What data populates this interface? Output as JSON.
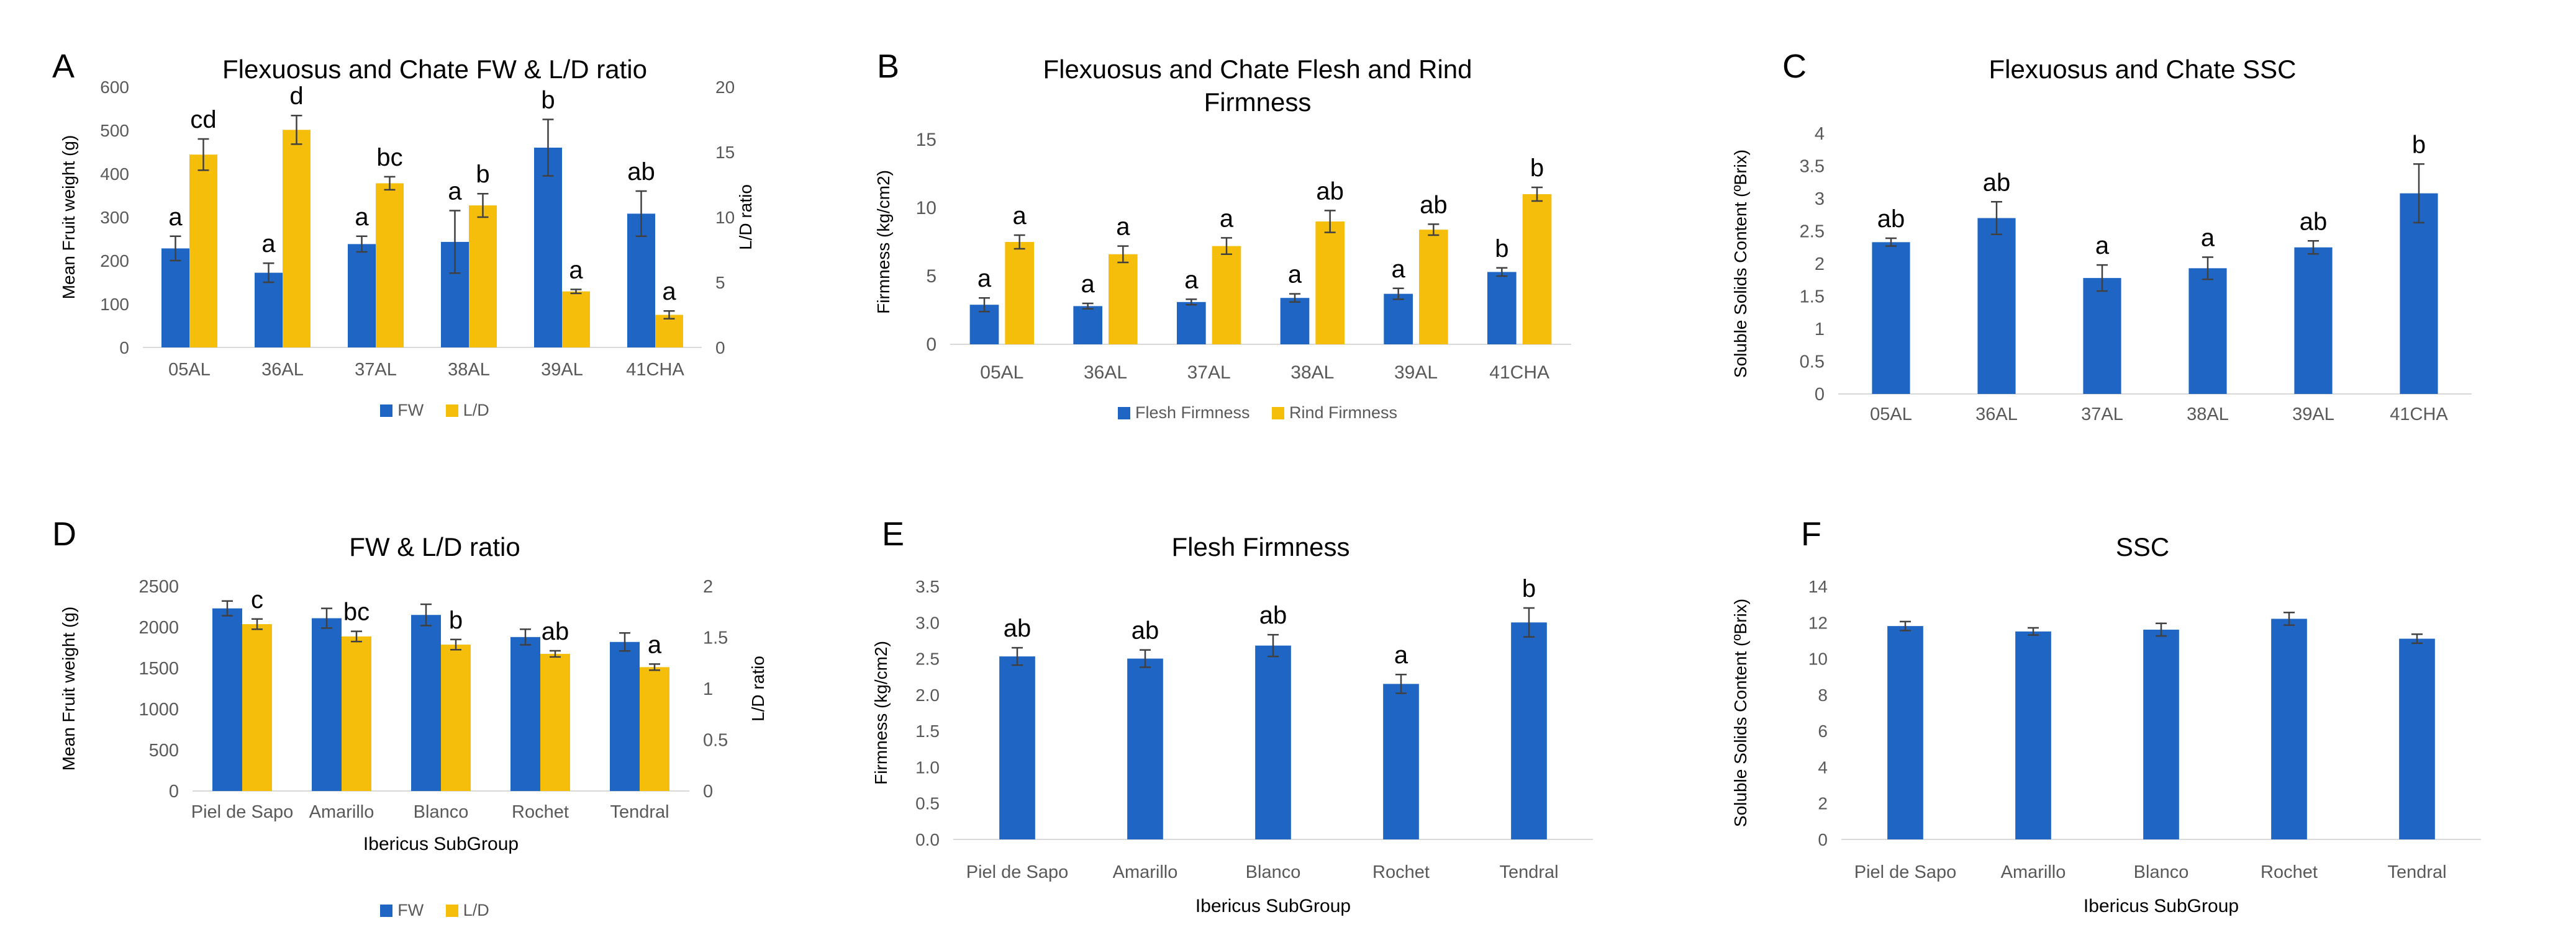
{
  "colors": {
    "series1": "#1f66c4",
    "series2": "#f5be0b",
    "axis_text": "#595959",
    "grid": "#d9d9d9"
  },
  "chart_data": [
    {
      "id": "A",
      "panel_label": "A",
      "type": "bar",
      "title": "Flexuosus and Chate FW & L/D ratio",
      "categories": [
        "05AL",
        "36AL",
        "37AL",
        "38AL",
        "39AL",
        "41CHA"
      ],
      "xlabel": "",
      "ylabel": "Mean Fruit weight (g)",
      "y2label": "L/D ratio",
      "ylim": [
        0,
        600
      ],
      "yticks": [
        0,
        100,
        200,
        300,
        400,
        500,
        600
      ],
      "y2lim": [
        0,
        20
      ],
      "y2ticks": [
        0,
        5,
        10,
        15,
        20
      ],
      "grid": false,
      "series": [
        {
          "name": "FW",
          "axis": "left",
          "color": "#1f66c4",
          "values": [
            228,
            172,
            238,
            243,
            460,
            308
          ],
          "errors": [
            28,
            22,
            18,
            72,
            65,
            52
          ],
          "letters": [
            "a",
            "a",
            "a",
            "a",
            "b",
            "ab"
          ]
        },
        {
          "name": "L/D",
          "axis": "right",
          "color": "#f5be0b",
          "values": [
            14.8,
            16.7,
            12.6,
            10.9,
            4.3,
            2.5
          ],
          "errors": [
            1.2,
            1.1,
            0.5,
            0.9,
            0.15,
            0.3
          ],
          "letters": [
            "cd",
            "d",
            "bc",
            "b",
            "a",
            "a"
          ]
        }
      ],
      "legend": [
        "FW",
        "L/D"
      ]
    },
    {
      "id": "B",
      "panel_label": "B",
      "type": "bar",
      "title": "Flexuosus and Chate Flesh and Rind Firmness",
      "categories": [
        "05AL",
        "36AL",
        "37AL",
        "38AL",
        "39AL",
        "41CHA"
      ],
      "xlabel": "",
      "ylabel": "Firmness (kg/cm2)",
      "ylim": [
        0,
        15
      ],
      "yticks": [
        0,
        5,
        10,
        15
      ],
      "grid": false,
      "series": [
        {
          "name": "Flesh Firmness",
          "axis": "left",
          "color": "#1f66c4",
          "values": [
            2.9,
            2.8,
            3.1,
            3.4,
            3.7,
            5.3
          ],
          "errors": [
            0.5,
            0.2,
            0.2,
            0.3,
            0.4,
            0.3
          ],
          "letters": [
            "a",
            "a",
            "a",
            "a",
            "a",
            "b"
          ]
        },
        {
          "name": "Rind Firmness",
          "axis": "left",
          "color": "#f5be0b",
          "values": [
            7.5,
            6.6,
            7.2,
            9.0,
            8.4,
            11.0
          ],
          "errors": [
            0.5,
            0.6,
            0.6,
            0.8,
            0.4,
            0.5
          ],
          "letters": [
            "a",
            "a",
            "a",
            "ab",
            "ab",
            "b"
          ]
        }
      ],
      "legend": [
        "Flesh Firmness",
        "Rind Firmness"
      ]
    },
    {
      "id": "C",
      "panel_label": "C",
      "type": "bar",
      "title": "Flexuosus and Chate SSC",
      "categories": [
        "05AL",
        "36AL",
        "37AL",
        "38AL",
        "39AL",
        "41CHA"
      ],
      "xlabel": "",
      "ylabel": "Soluble Solids Content (ºBrix)",
      "ylim": [
        0,
        4
      ],
      "yticks": [
        0,
        0.5,
        1,
        1.5,
        2,
        2.5,
        3,
        3.5,
        4
      ],
      "grid": false,
      "series": [
        {
          "name": "SSC",
          "axis": "left",
          "color": "#1f66c4",
          "values": [
            2.33,
            2.7,
            1.78,
            1.93,
            2.25,
            3.08
          ],
          "errors": [
            0.06,
            0.25,
            0.2,
            0.17,
            0.1,
            0.45
          ],
          "letters": [
            "ab",
            "ab",
            "a",
            "a",
            "ab",
            "b"
          ]
        }
      ],
      "legend": []
    },
    {
      "id": "D",
      "panel_label": "D",
      "type": "bar",
      "title": "FW & L/D ratio",
      "categories": [
        "Piel de Sapo",
        "Amarillo",
        "Blanco",
        "Rochet",
        "Tendral"
      ],
      "xlabel": "Ibericus SubGroup",
      "ylabel": "Mean Fruit weight (g)",
      "y2label": "L/D ratio",
      "ylim": [
        0,
        2500
      ],
      "yticks": [
        0,
        500,
        1000,
        1500,
        2000,
        2500
      ],
      "y2lim": [
        0,
        2
      ],
      "y2ticks": [
        0,
        0.5,
        1,
        1.5,
        2
      ],
      "grid": false,
      "series": [
        {
          "name": "FW",
          "axis": "left",
          "color": "#1f66c4",
          "values": [
            2230,
            2110,
            2150,
            1880,
            1820
          ],
          "errors": [
            90,
            120,
            130,
            95,
            110
          ],
          "letters": [
            "",
            "",
            "",
            "",
            ""
          ]
        },
        {
          "name": "L/D",
          "axis": "right",
          "color": "#f5be0b",
          "values": [
            1.63,
            1.51,
            1.43,
            1.34,
            1.21
          ],
          "errors": [
            0.05,
            0.05,
            0.05,
            0.03,
            0.03
          ],
          "letters": [
            "c",
            "bc",
            "b",
            "ab",
            "a"
          ]
        }
      ],
      "legend": [
        "FW",
        "L/D"
      ]
    },
    {
      "id": "E",
      "panel_label": "E",
      "type": "bar",
      "title": "Flesh Firmness",
      "categories": [
        "Piel de Sapo",
        "Amarillo",
        "Blanco",
        "Rochet",
        "Tendral"
      ],
      "xlabel": "Ibericus SubGroup",
      "ylabel": "Firmness (kg/cm2)",
      "ylim": [
        0,
        3.5
      ],
      "yticks": [
        "0.0",
        "0.5",
        "1.0",
        "1.5",
        "2.0",
        "2.5",
        "3.0",
        "3.5"
      ],
      "grid": false,
      "series": [
        {
          "name": "Flesh Firmness",
          "axis": "left",
          "color": "#1f66c4",
          "values": [
            2.53,
            2.5,
            2.68,
            2.15,
            3.0
          ],
          "errors": [
            0.12,
            0.12,
            0.15,
            0.13,
            0.2
          ],
          "letters": [
            "ab",
            "ab",
            "ab",
            "a",
            "b"
          ]
        }
      ],
      "legend": []
    },
    {
      "id": "F",
      "panel_label": "F",
      "type": "bar",
      "title": "SSC",
      "categories": [
        "Piel de Sapo",
        "Amarillo",
        "Blanco",
        "Rochet",
        "Tendral"
      ],
      "xlabel": "Ibericus SubGroup",
      "ylabel": "Soluble Solids Content (ºBrix)",
      "ylim": [
        0,
        14
      ],
      "yticks": [
        0,
        2,
        4,
        6,
        8,
        10,
        12,
        14
      ],
      "grid": false,
      "series": [
        {
          "name": "SSC",
          "axis": "left",
          "color": "#1f66c4",
          "values": [
            11.8,
            11.5,
            11.6,
            12.2,
            11.1
          ],
          "errors": [
            0.25,
            0.2,
            0.35,
            0.35,
            0.25
          ],
          "letters": [
            "",
            "",
            "",
            "",
            ""
          ]
        }
      ],
      "legend": []
    }
  ]
}
